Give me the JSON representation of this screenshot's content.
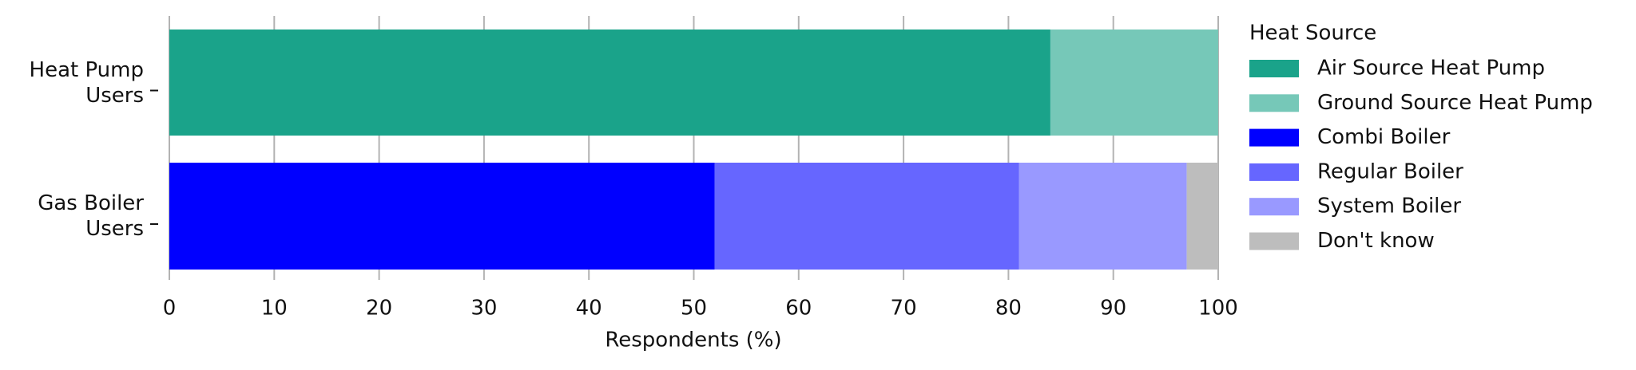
{
  "chart_data": {
    "type": "stacked_barh",
    "categories": [
      "Heat Pump Users",
      "Gas Boiler Users"
    ],
    "series": [
      {
        "name": "Air Source Heat Pump",
        "color": "#1aa38a",
        "values": [
          84,
          null
        ]
      },
      {
        "name": "Ground Source Heat Pump",
        "color": "#76c8b8",
        "values": [
          16,
          null
        ]
      },
      {
        "name": "Combi Boiler",
        "color": "#0000ff",
        "values": [
          null,
          52
        ]
      },
      {
        "name": "Regular Boiler",
        "color": "#6666ff",
        "values": [
          null,
          29
        ]
      },
      {
        "name": "System Boiler",
        "color": "#9999ff",
        "values": [
          null,
          16
        ]
      },
      {
        "name": "Don't know",
        "color": "#bdbdbd",
        "values": [
          null,
          3
        ]
      }
    ],
    "x_label": "Respondents (%)",
    "legend_title": "Heat Source",
    "xlim": [
      0,
      100
    ],
    "xticks": [
      0,
      10,
      20,
      30,
      40,
      50,
      60,
      70,
      80,
      90,
      100
    ],
    "grid": true,
    "legend": "right"
  }
}
